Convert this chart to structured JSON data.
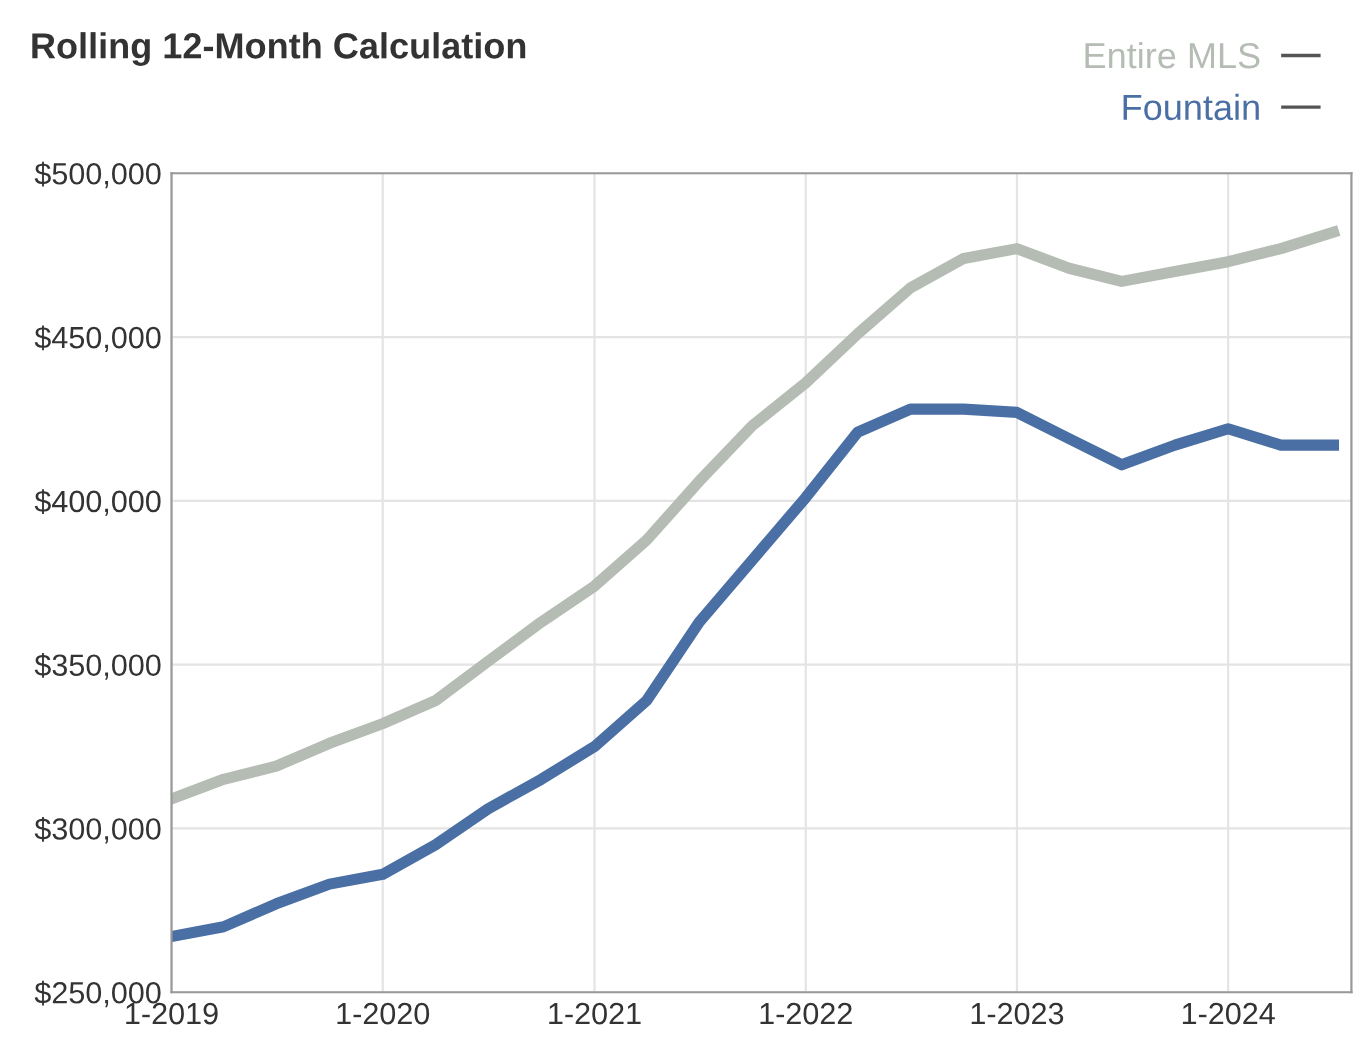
{
  "chart_data": {
    "type": "line",
    "title": "Rolling 12-Month Calculation",
    "x": [
      "2019-01",
      "2019-04",
      "2019-07",
      "2019-10",
      "2020-01",
      "2020-04",
      "2020-07",
      "2020-10",
      "2021-01",
      "2021-04",
      "2021-07",
      "2021-10",
      "2022-01",
      "2022-04",
      "2022-07",
      "2022-10",
      "2023-01",
      "2023-04",
      "2023-07",
      "2023-10",
      "2024-01",
      "2024-04",
      "2024-07"
    ],
    "series": [
      {
        "name": "Entire MLS",
        "color": "#b4bcb4",
        "values": [
          309000,
          315000,
          319000,
          326000,
          332000,
          339000,
          351000,
          363000,
          374000,
          388000,
          406000,
          423000,
          436000,
          451000,
          465000,
          474000,
          477000,
          471000,
          467000,
          470000,
          473000,
          477000,
          482000
        ]
      },
      {
        "name": "Fountain",
        "color": "#4a6fa5",
        "values": [
          267000,
          270000,
          277000,
          283000,
          286000,
          295000,
          306000,
          315000,
          325000,
          339000,
          363000,
          382000,
          401000,
          421000,
          428000,
          428000,
          427000,
          419000,
          411000,
          417000,
          422000,
          417000,
          417000
        ]
      }
    ],
    "xlim": [
      "2019-01",
      "2024-08"
    ],
    "xticks": [
      {
        "value": "2019-01",
        "label": "1-2019"
      },
      {
        "value": "2020-01",
        "label": "1-2020"
      },
      {
        "value": "2021-01",
        "label": "1-2021"
      },
      {
        "value": "2022-01",
        "label": "1-2022"
      },
      {
        "value": "2023-01",
        "label": "1-2023"
      },
      {
        "value": "2024-01",
        "label": "1-2024"
      }
    ],
    "ylim": [
      250000,
      500000
    ],
    "yticks": [
      {
        "value": 250000,
        "label": "$250,000"
      },
      {
        "value": 300000,
        "label": "$300,000"
      },
      {
        "value": 350000,
        "label": "$350,000"
      },
      {
        "value": 400000,
        "label": "$400,000"
      },
      {
        "value": 450000,
        "label": "$450,000"
      },
      {
        "value": 500000,
        "label": "$500,000"
      }
    ],
    "grid": true,
    "legend": "top right",
    "line_style": "solid",
    "marker": "none"
  }
}
